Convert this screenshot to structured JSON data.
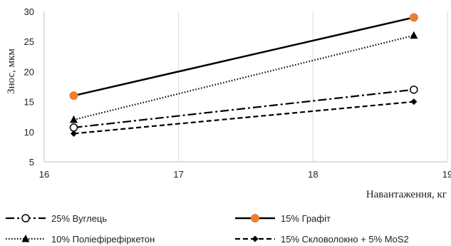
{
  "chart_data": {
    "type": "line",
    "title": "",
    "xlabel": "Навантаження, кг",
    "ylabel": "Знос, мкм",
    "xlim": [
      16,
      19
    ],
    "ylim": [
      5,
      30
    ],
    "xticks": [
      "16",
      "17",
      "18",
      "19"
    ],
    "yticks": [
      "5",
      "10",
      "15",
      "20",
      "25",
      "30"
    ],
    "grid": "vertical",
    "legend_position": "bottom",
    "series": [
      {
        "name": "25% Вуглець",
        "x": [
          16.22,
          18.75
        ],
        "y": [
          10.7,
          17.0
        ],
        "color": "#000000",
        "line_style": "dashdot",
        "marker": "open-circle"
      },
      {
        "name": "15% Графіт",
        "x": [
          16.22,
          18.75
        ],
        "y": [
          16.0,
          29.0
        ],
        "color": "#000000",
        "marker_color": "#ed7d31",
        "line_style": "solid",
        "marker": "circle"
      },
      {
        "name": "10% Поліефірефіркетон",
        "x": [
          16.22,
          18.75
        ],
        "y": [
          12.0,
          26.0
        ],
        "color": "#000000",
        "line_style": "dotted",
        "marker": "triangle"
      },
      {
        "name": "15% Скловолокно + 5% MoS2",
        "x": [
          16.22,
          18.75
        ],
        "y": [
          9.7,
          15.0
        ],
        "color": "#000000",
        "line_style": "dashed",
        "marker": "diamond"
      }
    ]
  }
}
